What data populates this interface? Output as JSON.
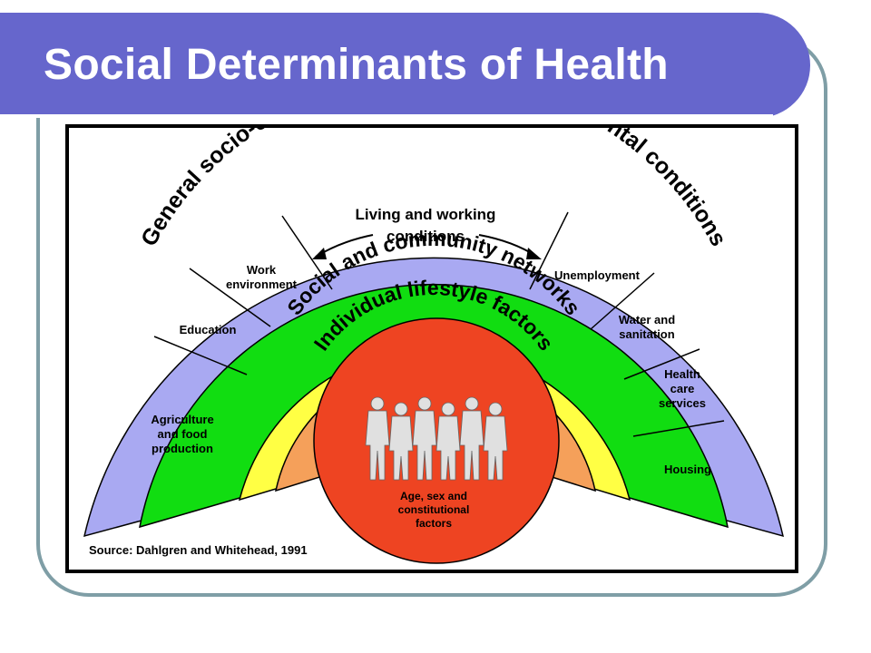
{
  "slide": {
    "title": "Social Determinants of Health",
    "source": "Source: Dahlgren and Whitehead, 1991"
  },
  "diagram": {
    "layers": [
      {
        "name": "outer",
        "label": "General socio-economic, cultural and environmental conditions",
        "color": "#a9a9f2"
      },
      {
        "name": "living",
        "label": "Living and working conditions",
        "color": "#11dd11"
      },
      {
        "name": "social",
        "label": "Social and community networks",
        "color": "#ffff44"
      },
      {
        "name": "lifestyle",
        "label": "Individual lifestyle factors",
        "color": "#f5a05a"
      },
      {
        "name": "core",
        "label": "Age, sex and constitutional factors",
        "color": "#ee4422"
      }
    ],
    "living_heading_line1": "Living and working",
    "living_heading_line2": "conditions",
    "segments": [
      {
        "label_lines": [
          "Agriculture",
          "and food",
          "production"
        ]
      },
      {
        "label_lines": [
          "Education"
        ]
      },
      {
        "label_lines": [
          "Work",
          "environment"
        ]
      },
      {
        "label_lines": [
          "Unemployment"
        ]
      },
      {
        "label_lines": [
          "Water and",
          "sanitation"
        ]
      },
      {
        "label_lines": [
          "Health",
          "care",
          "services"
        ]
      },
      {
        "label_lines": [
          "Housing"
        ]
      }
    ],
    "core_lines": [
      "Age, sex and",
      "constitutional",
      "factors"
    ],
    "people_count": 6,
    "border_color": "#000000",
    "people_color": "#e0e0e0"
  }
}
